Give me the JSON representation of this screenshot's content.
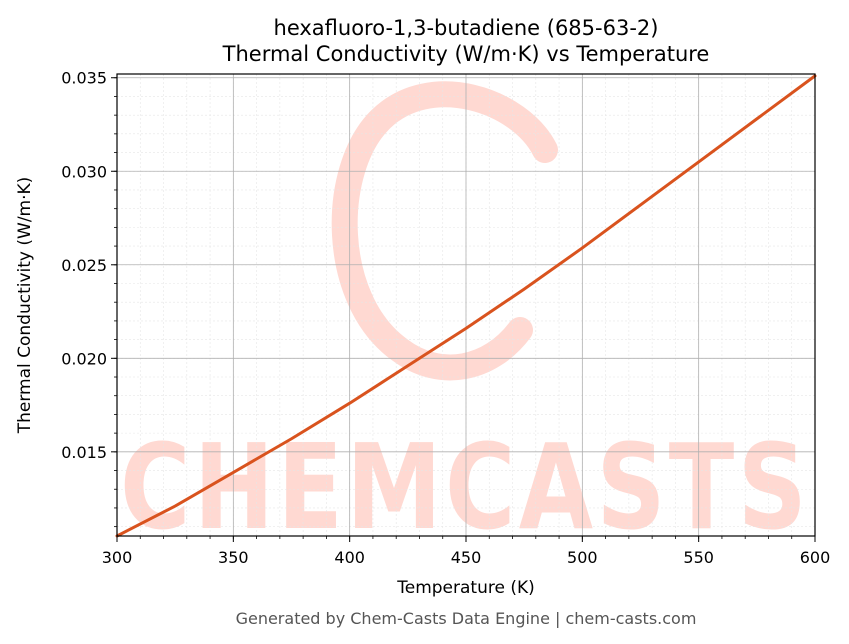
{
  "chart_data": {
    "type": "line",
    "title": "hexafluoro-1,3-butadiene (685-63-2)",
    "subtitle": "Thermal Conductivity (W/m·K) vs Temperature",
    "xlabel": "Temperature (K)",
    "ylabel": "Thermal Conductivity (W/m·K)",
    "xlim": [
      300,
      600
    ],
    "ylim": [
      0.0105,
      0.0352
    ],
    "x_ticks": [
      300,
      350,
      400,
      450,
      500,
      550,
      600
    ],
    "x_tick_labels": [
      "300",
      "350",
      "400",
      "450",
      "500",
      "550",
      "600"
    ],
    "y_ticks": [
      0.015,
      0.02,
      0.025,
      0.03,
      0.035
    ],
    "y_tick_labels": [
      "0.015",
      "0.020",
      "0.025",
      "0.030",
      "0.035"
    ],
    "grid": true,
    "series": [
      {
        "color": "#d9531e",
        "x": [
          300,
          325,
          350,
          375,
          400,
          425,
          450,
          475,
          500,
          525,
          550,
          575,
          600
        ],
        "y": [
          0.0105,
          0.0121,
          0.0139,
          0.0157,
          0.0176,
          0.0196,
          0.0216,
          0.0237,
          0.0259,
          0.0282,
          0.0305,
          0.0328,
          0.0351
        ]
      }
    ]
  },
  "watermark": {
    "text": "CHEMCASTS",
    "color": "#ffd9d2"
  },
  "footer": "Generated by Chem-Casts Data Engine | chem-casts.com"
}
